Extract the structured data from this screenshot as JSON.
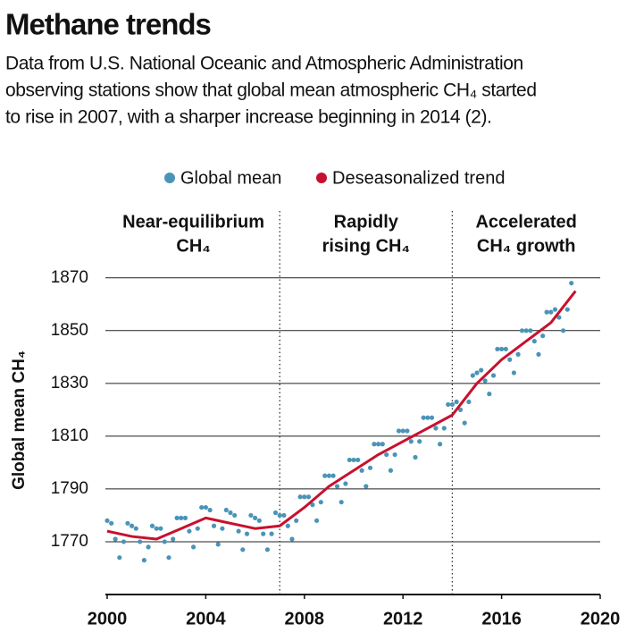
{
  "chart_data": {
    "type": "scatter",
    "title": "Methane trends",
    "subtitle": [
      "Data from U.S. National Oceanic and Atmospheric Administration",
      "observing stations show that global mean atmospheric CH₄ started",
      "to rise in 2007, with a sharper increase beginning in 2014 (2)."
    ],
    "y_label": "Global mean  CH₄",
    "xlim": [
      2000,
      2020
    ],
    "xticks": [
      2000,
      2004,
      2008,
      2012,
      2016,
      2020
    ],
    "ylim": [
      1750,
      1875
    ],
    "yticks": [
      1770,
      1790,
      1810,
      1830,
      1850,
      1870
    ],
    "grid": true,
    "period_dividers": [
      2007,
      2014
    ],
    "periods": [
      {
        "label": [
          "Near-equilibrium",
          "CH₄"
        ]
      },
      {
        "label": [
          "Rapidly",
          "rising CH₄"
        ]
      },
      {
        "label": [
          "Accelerated",
          "CH₄ growth"
        ]
      }
    ],
    "series": [
      {
        "name": "Global mean",
        "color": "#4a94b8",
        "style": "scatter",
        "x": [
          2000,
          2000.17,
          2000.33,
          2000.5,
          2000.67,
          2000.83,
          2001,
          2001.17,
          2001.33,
          2001.5,
          2001.67,
          2001.83,
          2002,
          2002.17,
          2002.33,
          2002.5,
          2002.67,
          2002.83,
          2003,
          2003.17,
          2003.33,
          2003.5,
          2003.67,
          2003.83,
          2004,
          2004.17,
          2004.33,
          2004.5,
          2004.67,
          2004.83,
          2005,
          2005.17,
          2005.33,
          2005.5,
          2005.67,
          2005.83,
          2006,
          2006.17,
          2006.33,
          2006.5,
          2006.67,
          2006.83,
          2007,
          2007.17,
          2007.33,
          2007.5,
          2007.67,
          2007.83,
          2008,
          2008.17,
          2008.33,
          2008.5,
          2008.67,
          2008.83,
          2009,
          2009.17,
          2009.33,
          2009.5,
          2009.67,
          2009.83,
          2010,
          2010.17,
          2010.33,
          2010.5,
          2010.67,
          2010.83,
          2011,
          2011.17,
          2011.33,
          2011.5,
          2011.67,
          2011.83,
          2012,
          2012.17,
          2012.33,
          2012.5,
          2012.67,
          2012.83,
          2013,
          2013.17,
          2013.33,
          2013.5,
          2013.67,
          2013.83,
          2014,
          2014.17,
          2014.33,
          2014.5,
          2014.67,
          2014.83,
          2015,
          2015.17,
          2015.33,
          2015.5,
          2015.67,
          2015.83,
          2016,
          2016.17,
          2016.33,
          2016.5,
          2016.67,
          2016.83,
          2017,
          2017.17,
          2017.33,
          2017.5,
          2017.67,
          2017.83,
          2018,
          2018.17,
          2018.33,
          2018.5,
          2018.67,
          2018.83
        ],
        "values": [
          1778,
          1777,
          1771,
          1764,
          1770,
          1777,
          1776,
          1775,
          1770,
          1763,
          1768,
          1776,
          1775,
          1775,
          1770,
          1764,
          1771,
          1779,
          1779,
          1779,
          1774,
          1768,
          1775,
          1783,
          1783,
          1782,
          1776,
          1769,
          1775,
          1782,
          1781,
          1780,
          1774,
          1767,
          1773,
          1780,
          1779,
          1778,
          1773,
          1767,
          1773,
          1781,
          1780,
          1780,
          1776,
          1771,
          1778,
          1787,
          1787,
          1787,
          1784,
          1778,
          1785,
          1795,
          1795,
          1795,
          1791,
          1785,
          1792,
          1801,
          1801,
          1801,
          1797,
          1791,
          1798,
          1807,
          1807,
          1807,
          1803,
          1797,
          1803,
          1812,
          1812,
          1812,
          1808,
          1802,
          1808,
          1817,
          1817,
          1817,
          1813,
          1807,
          1813,
          1822,
          1822,
          1823,
          1820,
          1815,
          1823,
          1833,
          1834,
          1835,
          1831,
          1826,
          1833,
          1843,
          1843,
          1843,
          1839,
          1834,
          1841,
          1850,
          1850,
          1850,
          1846,
          1841,
          1848,
          1857,
          1857,
          1858,
          1855,
          1850,
          1858,
          1868
        ]
      },
      {
        "name": "Deseasonalized trend",
        "color": "#c8102e",
        "style": "line",
        "x": [
          2000,
          2001,
          2002,
          2003,
          2004,
          2005,
          2006,
          2007,
          2008,
          2009,
          2010,
          2011,
          2012,
          2013,
          2014,
          2015,
          2016,
          2017,
          2018,
          2019
        ],
        "values": [
          1774,
          1772,
          1771,
          1775,
          1779,
          1777,
          1775,
          1776,
          1783,
          1791,
          1797,
          1803,
          1808,
          1813,
          1818,
          1830,
          1839,
          1846,
          1853,
          1865
        ]
      }
    ]
  }
}
